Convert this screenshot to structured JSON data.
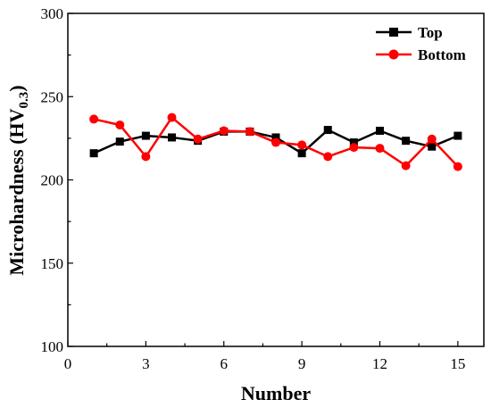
{
  "chart_data": {
    "type": "line",
    "title": "",
    "xlabel": "Number",
    "ylabel": {
      "main": "Microhardness (HV",
      "subscript": "0.3",
      "close": ")"
    },
    "xlim": [
      0,
      16
    ],
    "ylim": [
      100,
      300
    ],
    "xticks": [
      0,
      3,
      6,
      9,
      12,
      15
    ],
    "yticks": [
      100,
      150,
      200,
      250,
      300
    ],
    "grid": false,
    "legend_position": "top-right",
    "x": [
      1,
      2,
      3,
      4,
      5,
      6,
      7,
      8,
      9,
      10,
      11,
      12,
      13,
      14,
      15
    ],
    "series": [
      {
        "name": "Top",
        "color": "#000000",
        "marker": "square",
        "values": [
          216,
          223,
          226.5,
          225.5,
          223.5,
          229,
          229,
          225.5,
          216,
          230,
          222.5,
          229.5,
          223.5,
          220,
          226.5
        ]
      },
      {
        "name": "Bottom",
        "color": "#ff0000",
        "marker": "circle",
        "values": [
          236.5,
          233,
          214,
          237.5,
          224.5,
          229.5,
          229,
          222.5,
          221,
          214,
          219.5,
          219,
          208.5,
          224.5,
          208
        ]
      }
    ]
  }
}
